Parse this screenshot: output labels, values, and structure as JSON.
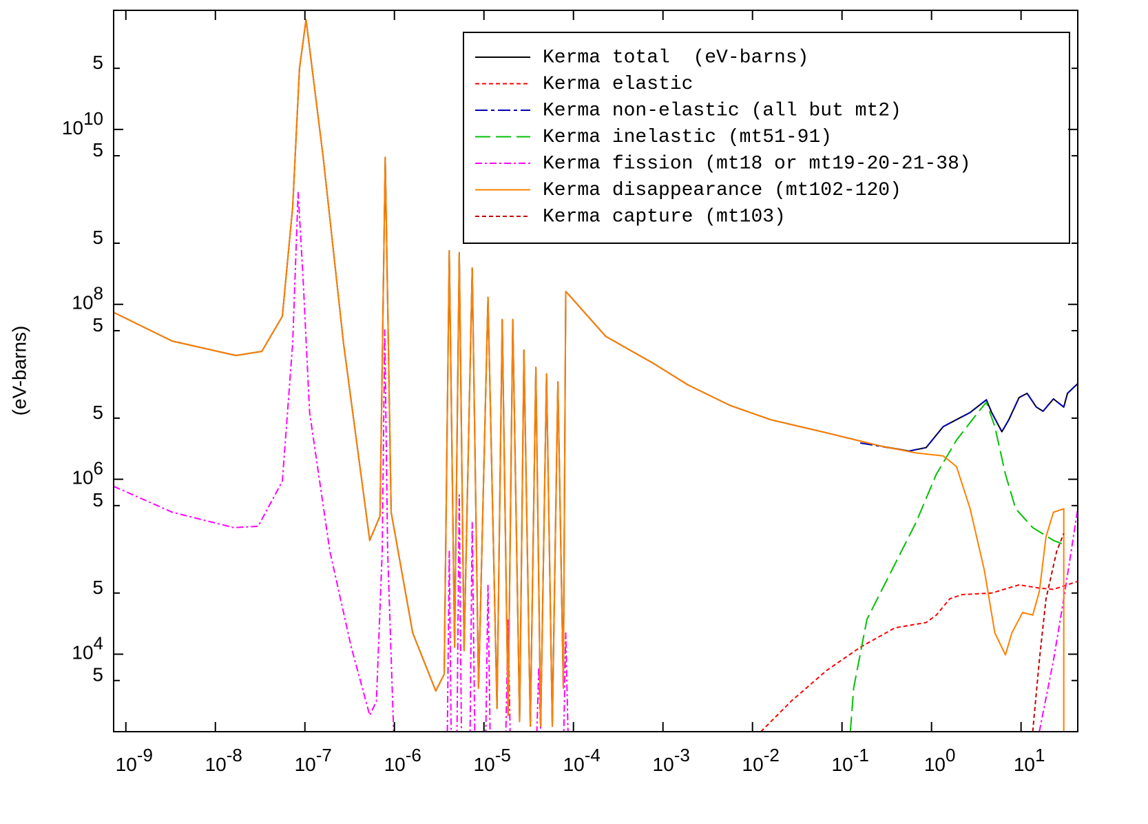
{
  "chart_data": {
    "type": "line",
    "y_label": "(eV-barns)",
    "xscale": "log",
    "yscale": "log",
    "xlim": [
      7.3e-10,
      43
    ],
    "ylim": [
      1300,
      230000000000.0
    ],
    "xticks": [
      {
        "value": 1e-09,
        "label": "10",
        "exp": "-9"
      },
      {
        "value": 1e-08,
        "label": "10",
        "exp": "-8"
      },
      {
        "value": 1e-07,
        "label": "10",
        "exp": "-7"
      },
      {
        "value": 1e-06,
        "label": "10",
        "exp": "-6"
      },
      {
        "value": 1e-05,
        "label": "10",
        "exp": "-5"
      },
      {
        "value": 0.0001,
        "label": "10",
        "exp": "-4"
      },
      {
        "value": 0.001,
        "label": "10",
        "exp": "-3"
      },
      {
        "value": 0.01,
        "label": "10",
        "exp": "-2"
      },
      {
        "value": 0.1,
        "label": "10",
        "exp": "-1"
      },
      {
        "value": 1,
        "label": "10",
        "exp": "0"
      },
      {
        "value": 10,
        "label": "10",
        "exp": "1"
      }
    ],
    "yticks": [
      {
        "value": 50000000000.0,
        "label": "5"
      },
      {
        "value": 10000000000.0,
        "label": "10",
        "exp": "10"
      },
      {
        "value": 5000000000.0,
        "label": "5"
      },
      {
        "value": 500000000.0,
        "label": "5"
      },
      {
        "value": 100000000.0,
        "label": "10",
        "exp": "8"
      },
      {
        "value": 50000000.0,
        "label": "5"
      },
      {
        "value": 5000000.0,
        "label": "5"
      },
      {
        "value": 1000000.0,
        "label": "10",
        "exp": "6"
      },
      {
        "value": 500000.0,
        "label": "5"
      },
      {
        "value": 50000.0,
        "label": "5"
      },
      {
        "value": 10000.0,
        "label": "10",
        "exp": "4"
      },
      {
        "value": 5000.0,
        "label": "5"
      }
    ],
    "legend": "upper right",
    "series": [
      {
        "name": "Kerma total  (eV-barns)",
        "color": "#000000",
        "dash": "none",
        "x": [
          7.3e-10,
          3.3e-09,
          1.7e-08,
          3.3e-08,
          5.6e-08,
          7.3e-08,
          8.7e-08,
          1.03e-07,
          1.6e-07,
          2.7e-07,
          5.3e-07,
          6.9e-07,
          7.9e-07,
          9.2e-07,
          1.6e-06,
          2.9e-06,
          3.6e-06,
          4.1e-06,
          4.7e-06,
          5.3e-06,
          6e-06,
          7.4e-06,
          8.7e-06,
          1.11e-05,
          1.4e-05,
          1.6e-05,
          1.86e-05,
          2.1e-05,
          2.5e-05,
          2.8e-05,
          3.3e-05,
          3.8e-05,
          4.3e-05,
          5e-05,
          5.8e-05,
          6.7e-05,
          7.7e-05,
          8.2e-05,
          8.8e-05,
          0.00023,
          0.00079,
          0.0019,
          0.0056,
          0.016,
          0.067,
          0.27,
          0.56,
          0.87,
          1.35,
          2.7,
          4.1,
          4.7,
          6.1,
          7.3,
          9.5,
          11.7,
          14.8,
          17.6,
          23,
          30,
          33,
          43
        ],
        "values": [
          81000000.0,
          38000000.0,
          26000000.0,
          29000000.0,
          73000000.0,
          1300000000.0,
          50000000000.0,
          180000000000.0,
          4800000000.0,
          36000000.0,
          200000.0,
          380000.0,
          4800000000.0,
          420000.0,
          17500.0,
          3800.0,
          5900.0,
          410000000.0,
          12000.0,
          390000000.0,
          11000.0,
          260000000.0,
          4100.0,
          120000000.0,
          2400.0,
          67000000.0,
          2000.0,
          67000000.0,
          1700.0,
          30000000.0,
          1500.0,
          19000000.0,
          1500.0,
          16000000.0,
          1500.0,
          13000000.0,
          4100.0,
          140000000.0,
          130000000.0,
          43000000.0,
          21000000.0,
          12000000.0,
          7000000.0,
          4800000.0,
          3400000.0,
          2400000.0,
          2100000.0,
          2300000.0,
          4000000.0,
          5800000.0,
          8100000.0,
          5800000.0,
          3500000.0,
          4800000.0,
          8600000.0,
          9600000.0,
          6700000.0,
          6000000.0,
          8300000.0,
          6700000.0,
          9600000.0,
          12400000.0
        ]
      },
      {
        "name": "Kerma elastic",
        "color": "#ff0000",
        "dash": "6,4",
        "x": [
          0.0124,
          0.027,
          0.067,
          0.16,
          0.39,
          0.87,
          1.13,
          1.6,
          2.2,
          4.7,
          9.5,
          16,
          23,
          43
        ],
        "values": [
          1300.0,
          2900.0,
          6500.0,
          12000.0,
          20000.0,
          23000.0,
          28000.0,
          43000.0,
          48000.0,
          50000.0,
          62000.0,
          57000.0,
          55000.0,
          68000.0
        ]
      },
      {
        "name": "Kerma non-elastic (all but mt2)",
        "color": "#0000b0",
        "dash": "18,5,5,5",
        "x": [
          0.16,
          0.56,
          0.87,
          1.35,
          2.7,
          4.1,
          4.7,
          6.1,
          7.3,
          9.5,
          11.7,
          14.8,
          17.6,
          23,
          30,
          33,
          43
        ],
        "values": [
          2600000.0,
          2100000.0,
          2300000.0,
          4000000.0,
          5800000.0,
          8100000.0,
          5800000.0,
          3500000.0,
          4800000.0,
          8600000.0,
          9600000.0,
          6700000.0,
          6000000.0,
          8300000.0,
          6700000.0,
          9600000.0,
          12400000.0
        ]
      },
      {
        "name": "Kerma inelastic (mt51-91)",
        "color": "#00c000",
        "dash": "22,8",
        "x": [
          0.124,
          0.135,
          0.19,
          0.39,
          0.67,
          1.13,
          1.9,
          3.3,
          4.1,
          5.1,
          6.7,
          8.7,
          13.5,
          23,
          30
        ],
        "values": [
          1300.0,
          4100.0,
          25000.0,
          107000.0,
          320000.0,
          1140000.0,
          2800000.0,
          5800000.0,
          7600000.0,
          4000000.0,
          1140000.0,
          460000.0,
          280000.0,
          200000.0,
          180000.0
        ]
      },
      {
        "name": "Kerma fission (mt18 or mt19-20-21-38)",
        "color": "#ff00ff",
        "dash": "10,4,3,4",
        "x": [
          7.3e-10,
          3.3e-09,
          1.6e-08,
          3e-08,
          5.6e-08,
          7.3e-08,
          8.4e-08,
          9.5e-08,
          1.13e-07,
          1.9e-07,
          3.3e-07,
          5.3e-07,
          6.3e-07,
          7.3e-07,
          7.8e-07,
          8.4e-07,
          9.8e-07,
          null,
          3.9e-06,
          4.1e-06,
          4.3e-06,
          5e-06,
          5.3e-06,
          5.6e-06,
          7e-06,
          7.4e-06,
          7.9e-06,
          1.05e-05,
          1.11e-05,
          1.17e-05,
          1.76e-05,
          1.86e-05,
          1.96e-05,
          3.9e-05,
          4.1e-05,
          4.3e-05,
          7.8e-05,
          8.2e-05,
          8.7e-05,
          null,
          16,
          23,
          30,
          43
        ],
        "values": [
          830000.0,
          420000.0,
          280000.0,
          290000.0,
          950000.0,
          36000000.0,
          1900000000.0,
          220000000.0,
          5800000.0,
          150000.0,
          12000.0,
          2000.0,
          2900.0,
          150000.0,
          51000000.0,
          150000.0,
          1300.0,
          null,
          1300.0,
          150000.0,
          1300.0,
          1300.0,
          660000.0,
          1300.0,
          1300.0,
          320000.0,
          1300.0,
          1300.0,
          62000.0,
          1300.0,
          1300.0,
          25000.0,
          1300.0,
          1300.0,
          7100.0,
          1300.0,
          1300.0,
          17500.0,
          1300.0,
          null,
          1300.0,
          8500.0,
          43000.0,
          460000.0
        ]
      },
      {
        "name": "Kerma disappearance (mt102-120)",
        "color": "#ff8000",
        "dash": "none",
        "x": [
          7.3e-10,
          3.3e-09,
          1.7e-08,
          3.3e-08,
          5.6e-08,
          7.3e-08,
          8.7e-08,
          1.03e-07,
          1.6e-07,
          2.7e-07,
          5.3e-07,
          6.9e-07,
          7.9e-07,
          9.2e-07,
          1.6e-06,
          2.9e-06,
          3.6e-06,
          4.1e-06,
          4.7e-06,
          5.3e-06,
          6e-06,
          7.4e-06,
          8.7e-06,
          1.11e-05,
          1.4e-05,
          1.6e-05,
          1.86e-05,
          2.1e-05,
          2.5e-05,
          2.8e-05,
          3.3e-05,
          3.8e-05,
          4.3e-05,
          5e-05,
          5.8e-05,
          6.7e-05,
          7.7e-05,
          8.2e-05,
          8.8e-05,
          0.00023,
          0.00079,
          0.0019,
          0.0056,
          0.016,
          0.067,
          0.27,
          0.67,
          1.35,
          1.9,
          2.7,
          3.9,
          5.1,
          6.7,
          7.9,
          10.4,
          13.5,
          16,
          19,
          23,
          30,
          30
        ],
        "values": [
          81000000.0,
          38000000.0,
          26000000.0,
          29000000.0,
          73000000.0,
          1300000000.0,
          50000000000.0,
          180000000000.0,
          4800000000.0,
          36000000.0,
          200000.0,
          380000.0,
          4800000000.0,
          420000.0,
          17500.0,
          3800.0,
          5900.0,
          410000000.0,
          12000.0,
          390000000.0,
          11000.0,
          260000000.0,
          4100.0,
          120000000.0,
          2400.0,
          67000000.0,
          2000.0,
          67000000.0,
          1700.0,
          30000000.0,
          1500.0,
          19000000.0,
          1500.0,
          16000000.0,
          1500.0,
          13000000.0,
          4100.0,
          140000000.0,
          130000000.0,
          43000000.0,
          21000000.0,
          12000000.0,
          7000000.0,
          4800000.0,
          3400000.0,
          2400000.0,
          2000000.0,
          1850000.0,
          1400000.0,
          460000.0,
          90000.0,
          17500.0,
          9800.0,
          17500.0,
          30000.0,
          28000.0,
          52000.0,
          220000.0,
          420000.0,
          460000.0,
          1300.0
        ]
      },
      {
        "name": "Kerma capture (mt103)",
        "color": "#c00000",
        "dash": "6,4",
        "x": [
          13.5,
          16,
          19,
          25,
          30
        ],
        "values": [
          1300.0,
          8500.0,
          43000.0,
          150000.0,
          240000.0
        ]
      }
    ]
  }
}
